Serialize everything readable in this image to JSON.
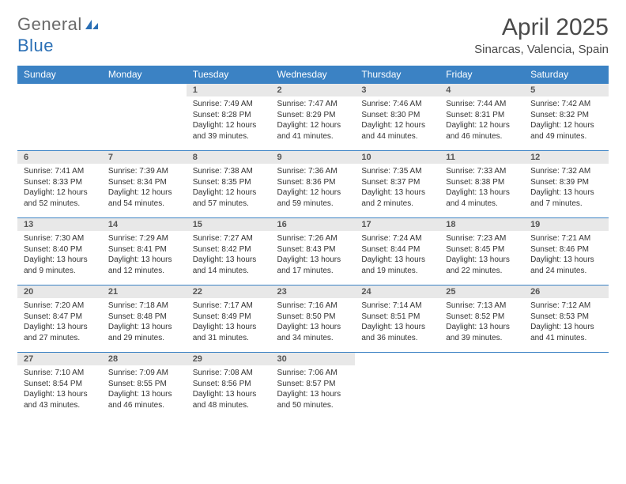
{
  "brand": {
    "part1": "General",
    "part2": "Blue"
  },
  "title": "April 2025",
  "subtitle": "Sinarcas, Valencia, Spain",
  "colors": {
    "header_bg": "#3b82c4",
    "header_fg": "#ffffff",
    "daynum_bg": "#e8e8e8",
    "row_border": "#3b82c4",
    "text": "#333333"
  },
  "columns": [
    "Sunday",
    "Monday",
    "Tuesday",
    "Wednesday",
    "Thursday",
    "Friday",
    "Saturday"
  ],
  "weeks": [
    [
      null,
      null,
      {
        "n": "1",
        "sunrise": "7:49 AM",
        "sunset": "8:28 PM",
        "day_h": "12",
        "day_m": "39"
      },
      {
        "n": "2",
        "sunrise": "7:47 AM",
        "sunset": "8:29 PM",
        "day_h": "12",
        "day_m": "41"
      },
      {
        "n": "3",
        "sunrise": "7:46 AM",
        "sunset": "8:30 PM",
        "day_h": "12",
        "day_m": "44"
      },
      {
        "n": "4",
        "sunrise": "7:44 AM",
        "sunset": "8:31 PM",
        "day_h": "12",
        "day_m": "46"
      },
      {
        "n": "5",
        "sunrise": "7:42 AM",
        "sunset": "8:32 PM",
        "day_h": "12",
        "day_m": "49"
      }
    ],
    [
      {
        "n": "6",
        "sunrise": "7:41 AM",
        "sunset": "8:33 PM",
        "day_h": "12",
        "day_m": "52"
      },
      {
        "n": "7",
        "sunrise": "7:39 AM",
        "sunset": "8:34 PM",
        "day_h": "12",
        "day_m": "54"
      },
      {
        "n": "8",
        "sunrise": "7:38 AM",
        "sunset": "8:35 PM",
        "day_h": "12",
        "day_m": "57"
      },
      {
        "n": "9",
        "sunrise": "7:36 AM",
        "sunset": "8:36 PM",
        "day_h": "12",
        "day_m": "59"
      },
      {
        "n": "10",
        "sunrise": "7:35 AM",
        "sunset": "8:37 PM",
        "day_h": "13",
        "day_m": "2"
      },
      {
        "n": "11",
        "sunrise": "7:33 AM",
        "sunset": "8:38 PM",
        "day_h": "13",
        "day_m": "4"
      },
      {
        "n": "12",
        "sunrise": "7:32 AM",
        "sunset": "8:39 PM",
        "day_h": "13",
        "day_m": "7"
      }
    ],
    [
      {
        "n": "13",
        "sunrise": "7:30 AM",
        "sunset": "8:40 PM",
        "day_h": "13",
        "day_m": "9"
      },
      {
        "n": "14",
        "sunrise": "7:29 AM",
        "sunset": "8:41 PM",
        "day_h": "13",
        "day_m": "12"
      },
      {
        "n": "15",
        "sunrise": "7:27 AM",
        "sunset": "8:42 PM",
        "day_h": "13",
        "day_m": "14"
      },
      {
        "n": "16",
        "sunrise": "7:26 AM",
        "sunset": "8:43 PM",
        "day_h": "13",
        "day_m": "17"
      },
      {
        "n": "17",
        "sunrise": "7:24 AM",
        "sunset": "8:44 PM",
        "day_h": "13",
        "day_m": "19"
      },
      {
        "n": "18",
        "sunrise": "7:23 AM",
        "sunset": "8:45 PM",
        "day_h": "13",
        "day_m": "22"
      },
      {
        "n": "19",
        "sunrise": "7:21 AM",
        "sunset": "8:46 PM",
        "day_h": "13",
        "day_m": "24"
      }
    ],
    [
      {
        "n": "20",
        "sunrise": "7:20 AM",
        "sunset": "8:47 PM",
        "day_h": "13",
        "day_m": "27"
      },
      {
        "n": "21",
        "sunrise": "7:18 AM",
        "sunset": "8:48 PM",
        "day_h": "13",
        "day_m": "29"
      },
      {
        "n": "22",
        "sunrise": "7:17 AM",
        "sunset": "8:49 PM",
        "day_h": "13",
        "day_m": "31"
      },
      {
        "n": "23",
        "sunrise": "7:16 AM",
        "sunset": "8:50 PM",
        "day_h": "13",
        "day_m": "34"
      },
      {
        "n": "24",
        "sunrise": "7:14 AM",
        "sunset": "8:51 PM",
        "day_h": "13",
        "day_m": "36"
      },
      {
        "n": "25",
        "sunrise": "7:13 AM",
        "sunset": "8:52 PM",
        "day_h": "13",
        "day_m": "39"
      },
      {
        "n": "26",
        "sunrise": "7:12 AM",
        "sunset": "8:53 PM",
        "day_h": "13",
        "day_m": "41"
      }
    ],
    [
      {
        "n": "27",
        "sunrise": "7:10 AM",
        "sunset": "8:54 PM",
        "day_h": "13",
        "day_m": "43"
      },
      {
        "n": "28",
        "sunrise": "7:09 AM",
        "sunset": "8:55 PM",
        "day_h": "13",
        "day_m": "46"
      },
      {
        "n": "29",
        "sunrise": "7:08 AM",
        "sunset": "8:56 PM",
        "day_h": "13",
        "day_m": "48"
      },
      {
        "n": "30",
        "sunrise": "7:06 AM",
        "sunset": "8:57 PM",
        "day_h": "13",
        "day_m": "50"
      },
      null,
      null,
      null
    ]
  ]
}
